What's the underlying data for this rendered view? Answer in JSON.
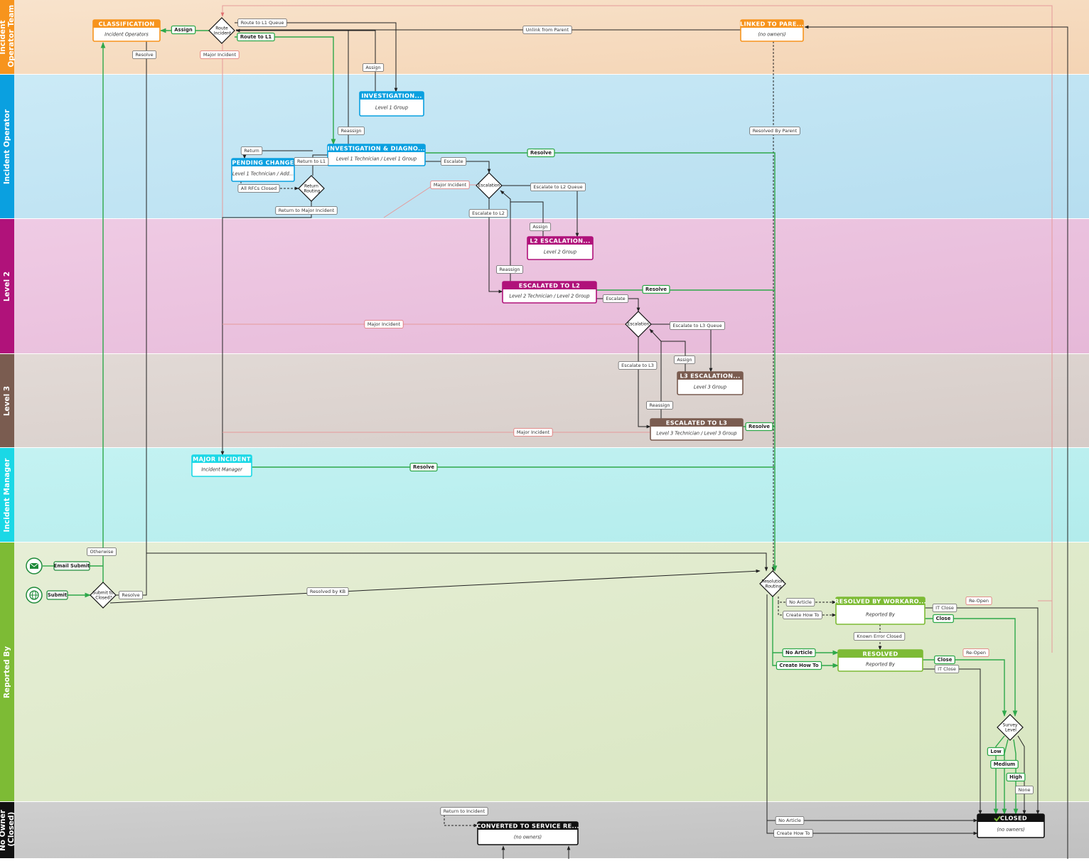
{
  "lanes": [
    "Incident Operator Team",
    "Incident Operator",
    "Level 2",
    "Level 3",
    "Incident Manager",
    "Reported By",
    "No Owner (Closed)"
  ],
  "states": [
    {
      "title": "CLASSIFICATION",
      "owner": "Incident Operators"
    },
    {
      "title": "LINKED TO PARE...",
      "owner": "(no owners)"
    },
    {
      "title": "INVESTIGATION...",
      "owner": "Level 1 Group"
    },
    {
      "title": "INVESTIGATION & DIAGNO...",
      "owner": "Level 1 Technician / Level 1 Group"
    },
    {
      "title": "PENDING CHANGE",
      "owner": "Level 1 Technician / Add..."
    },
    {
      "title": "L2 ESCALATION...",
      "owner": "Level 2 Group"
    },
    {
      "title": "ESCALATED TO L2",
      "owner": "Level 2 Technician / Level 2 Group"
    },
    {
      "title": "L3 ESCALATION...",
      "owner": "Level 3 Group"
    },
    {
      "title": "ESCALATED TO L3",
      "owner": "Level 3 Technician / Level 3 Group"
    },
    {
      "title": "MAJOR INCIDENT",
      "owner": "Incident Manager"
    },
    {
      "title": "RESOLVED BY WORKARO...",
      "owner": "Reported By"
    },
    {
      "title": "RESOLVED",
      "owner": "Reported By"
    },
    {
      "title": "CLOSED",
      "owner": "(no owners)"
    },
    {
      "title": "CONVERTED TO SERVICE RE...",
      "owner": "(no owners)"
    }
  ],
  "decisions": [
    "Route Incident",
    "Return Routing",
    "Escalation",
    "Escalation",
    "Submit to Closed?",
    "Resolution Routing",
    "Survey Level"
  ],
  "starts": [
    "Email Submit",
    "Submit"
  ],
  "transitions": [
    "Assign",
    "Route to L1 Queue",
    "Route to L1",
    "Resolve",
    "Major Incident",
    "Unlink from Parent",
    "Assign",
    "Reassign",
    "Return",
    "Return to L1",
    "Escalate",
    "Resolve",
    "Resolved By Parent",
    "All RFCs Closed",
    "Major Incident",
    "Escalate to L2 Queue",
    "Return to Major Incident",
    "Escalate to L2",
    "Assign",
    "Reassign",
    "Resolve",
    "Escalate",
    "Major Incident",
    "Escalate to L3 Queue",
    "Assign",
    "Escalate to L3",
    "Reassign",
    "Resolve",
    "Major Incident",
    "Resolve",
    "Otherwise",
    "Resolve",
    "Resolved by KB",
    "No Article",
    "Create How To",
    "Re-Open",
    "IT Close",
    "Close",
    "Known Error Closed",
    "No Article",
    "Create How To",
    "Re-Open",
    "Close",
    "IT Close",
    "Low",
    "Medium",
    "High",
    "None",
    "Return to Incident",
    "No Article",
    "Create How To"
  ]
}
